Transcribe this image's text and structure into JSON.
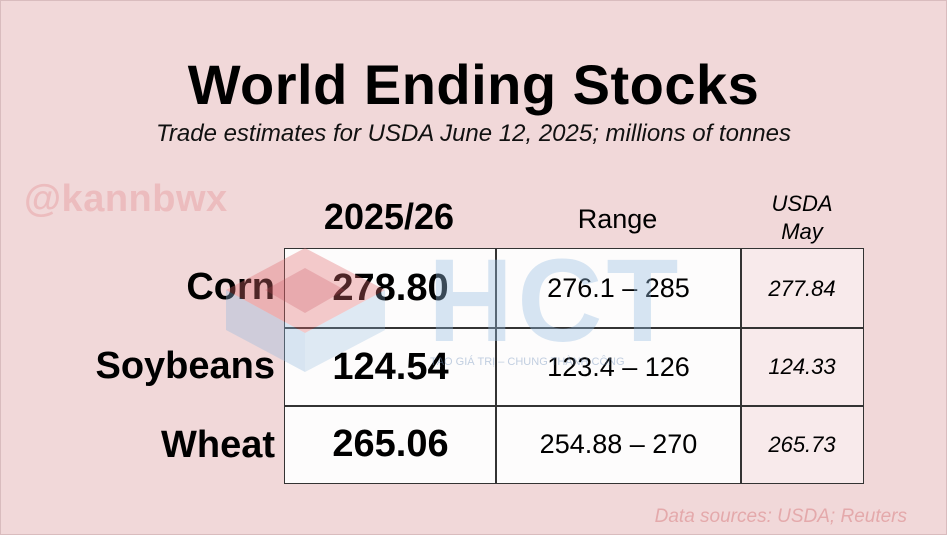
{
  "chart_data": {
    "type": "table",
    "title": "World Ending Stocks",
    "subtitle": "Trade estimates for USDA June 12, 2025; millions of tonnes",
    "columns": [
      "2025/26",
      "Range",
      "USDA\nMay"
    ],
    "rows": [
      {
        "label": "Corn",
        "estimate": "278.80",
        "range": "276.1 – 285",
        "usda_may": "277.84"
      },
      {
        "label": "Soybeans",
        "estimate": "124.54",
        "range": "123.4 – 126",
        "usda_may": "124.33"
      },
      {
        "label": "Wheat",
        "estimate": "265.06",
        "range": "254.88 – 270",
        "usda_may": "265.73"
      }
    ],
    "source": "Data sources: USDA; Reuters"
  },
  "headers": {
    "year": "2025/26",
    "range": "Range",
    "usda_line1": "USDA",
    "usda_line2": "May"
  },
  "watermarks": {
    "handle": "@kannbwx",
    "logo_text": "HCT",
    "logo_tagline": "TẠO GIÁ TRỊ – CHUNG THÀNH CÔNG"
  },
  "colors": {
    "background": "#f1d8d9",
    "handle": "#ecbcbe",
    "source": "#e4a9ab",
    "logo_red": "#e06b6e",
    "logo_blue": "#8fb6dc"
  }
}
